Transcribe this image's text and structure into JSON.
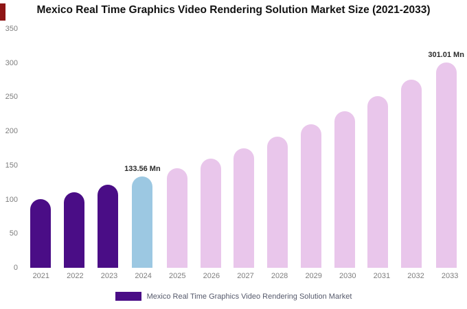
{
  "chart_data": {
    "type": "bar",
    "title": "Mexico Real Time Graphics Video Rendering Solution Market Size (2021-2033)",
    "categories": [
      "2021",
      "2022",
      "2023",
      "2024",
      "2025",
      "2026",
      "2027",
      "2028",
      "2029",
      "2030",
      "2031",
      "2032",
      "2033"
    ],
    "values": [
      100.2,
      110.5,
      121.5,
      133.56,
      146.2,
      160.0,
      175.2,
      191.8,
      209.9,
      229.8,
      251.6,
      275.4,
      301.01
    ],
    "bar_colors": [
      "#4a0d86",
      "#4a0d86",
      "#4a0d86",
      "#9cc8e2",
      "#e9c6eb",
      "#e9c6eb",
      "#e9c6eb",
      "#e9c6eb",
      "#e9c6eb",
      "#e9c6eb",
      "#e9c6eb",
      "#e9c6eb",
      "#e9c6eb"
    ],
    "annotations": [
      {
        "index": 3,
        "text": "133.56 Mn"
      },
      {
        "index": 12,
        "text": "301.01 Mn"
      }
    ],
    "xlabel": "",
    "ylabel": "",
    "ylim": [
      0,
      350
    ],
    "yticks": [
      0,
      50,
      100,
      150,
      200,
      250,
      300,
      350
    ],
    "grid": false,
    "legend_position": "bottom",
    "legend": {
      "label": "Mexico Real Time Graphics Video Rendering Solution Market",
      "swatch_color": "#4a0d86"
    }
  },
  "brand": {
    "mark_color": "#8e1515"
  }
}
